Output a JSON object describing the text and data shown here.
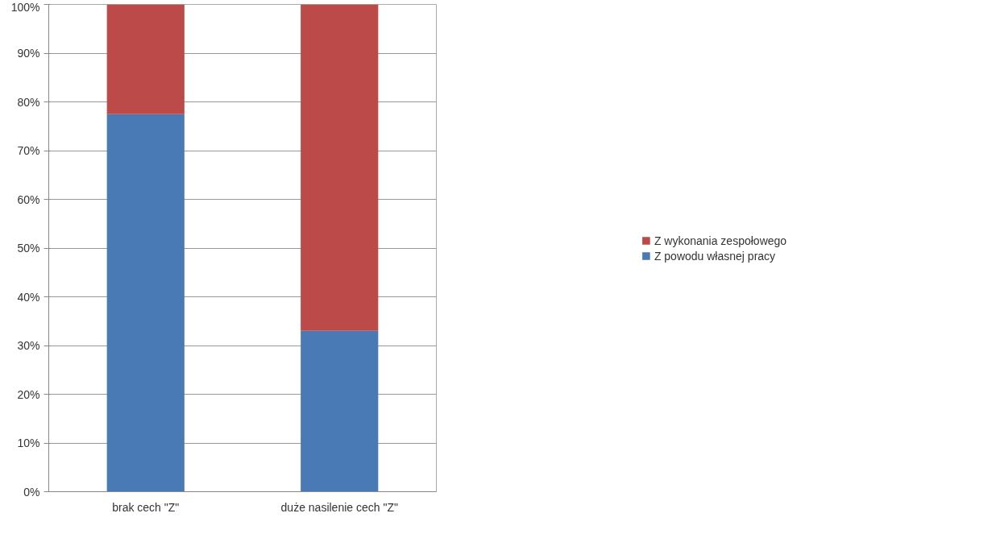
{
  "chart_data": {
    "type": "bar",
    "stacked": true,
    "categories": [
      "brak cech \"Z\"",
      "duże nasilenie cech \"Z\""
    ],
    "series": [
      {
        "name": "Z powodu własnej pracy",
        "color": "#4a7ab5",
        "values": [
          77.5,
          33
        ]
      },
      {
        "name": "Z wykonania zespołowego",
        "color": "#bb4a48",
        "values": [
          22.5,
          67
        ]
      }
    ],
    "ylim": [
      0,
      100
    ],
    "yticks": [
      {
        "value": 0,
        "label": "0%"
      },
      {
        "value": 10,
        "label": "10%"
      },
      {
        "value": 20,
        "label": "20%"
      },
      {
        "value": 30,
        "label": "30%"
      },
      {
        "value": 40,
        "label": "40%"
      },
      {
        "value": 50,
        "label": "50%"
      },
      {
        "value": 60,
        "label": "60%"
      },
      {
        "value": 70,
        "label": "70%"
      },
      {
        "value": 80,
        "label": "80%"
      },
      {
        "value": 90,
        "label": "90%"
      },
      {
        "value": 100,
        "label": "100%"
      }
    ],
    "grid": "y",
    "legend": "right"
  }
}
